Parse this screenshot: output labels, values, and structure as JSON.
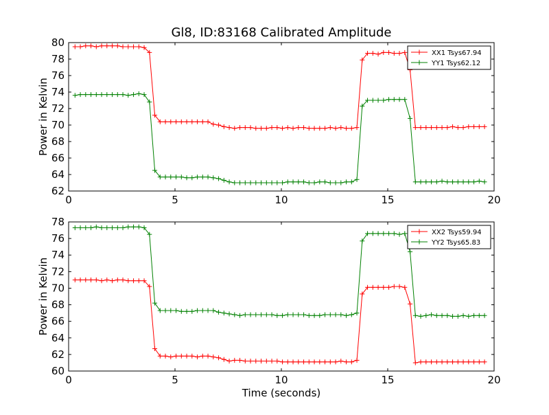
{
  "chart_title": "Gl8, ID:83168 Calibrated Amplitude",
  "colors": {
    "xx": "#ff0000",
    "yy": "#008000"
  },
  "chart_data": [
    {
      "type": "line",
      "title": "Gl8, ID:83168 Calibrated Amplitude",
      "xlabel": "",
      "ylabel": "Power in Kelvin",
      "xlim": [
        0,
        20
      ],
      "ylim": [
        62,
        80
      ],
      "xticks": [
        0,
        5,
        10,
        15,
        20
      ],
      "yticks": [
        62,
        64,
        66,
        68,
        70,
        72,
        74,
        76,
        78,
        80
      ],
      "grid": false,
      "legend_position": "top-right",
      "x": [
        0.3,
        0.55,
        0.8,
        1.05,
        1.3,
        1.55,
        1.8,
        2.05,
        2.3,
        2.55,
        2.8,
        3.05,
        3.3,
        3.55,
        3.8,
        4.05,
        4.3,
        4.55,
        4.8,
        5.05,
        5.3,
        5.55,
        5.8,
        6.05,
        6.3,
        6.55,
        6.8,
        7.05,
        7.3,
        7.55,
        7.8,
        8.05,
        8.3,
        8.55,
        8.8,
        9.05,
        9.3,
        9.55,
        9.8,
        10.05,
        10.3,
        10.55,
        10.8,
        11.05,
        11.3,
        11.55,
        11.8,
        12.05,
        12.3,
        12.55,
        12.8,
        13.05,
        13.3,
        13.55,
        13.8,
        14.05,
        14.3,
        14.55,
        14.8,
        15.05,
        15.3,
        15.55,
        15.8,
        16.05,
        16.3,
        16.55,
        16.8,
        17.05,
        17.3,
        17.55,
        17.8,
        18.05,
        18.3,
        18.55,
        18.8,
        19.05,
        19.3,
        19.55
      ],
      "series": [
        {
          "name": "XX1 Tsys67.94",
          "color": "#ff0000",
          "values": [
            79.5,
            79.5,
            79.6,
            79.6,
            79.5,
            79.6,
            79.6,
            79.6,
            79.6,
            79.5,
            79.5,
            79.5,
            79.5,
            79.4,
            78.8,
            71.2,
            70.4,
            70.4,
            70.4,
            70.4,
            70.4,
            70.4,
            70.4,
            70.4,
            70.4,
            70.4,
            70.1,
            70.0,
            69.8,
            69.7,
            69.6,
            69.7,
            69.7,
            69.7,
            69.6,
            69.6,
            69.6,
            69.7,
            69.7,
            69.6,
            69.7,
            69.6,
            69.7,
            69.7,
            69.6,
            69.6,
            69.6,
            69.6,
            69.7,
            69.6,
            69.7,
            69.6,
            69.6,
            69.7,
            77.9,
            78.7,
            78.7,
            78.6,
            78.8,
            78.8,
            78.7,
            78.7,
            78.8,
            76.7,
            69.7,
            69.7,
            69.7,
            69.7,
            69.7,
            69.7,
            69.7,
            69.8,
            69.7,
            69.7,
            69.8,
            69.8,
            69.8,
            69.8
          ]
        },
        {
          "name": "YY1 Tsys62.12",
          "color": "#008000",
          "values": [
            73.6,
            73.7,
            73.7,
            73.7,
            73.7,
            73.7,
            73.7,
            73.7,
            73.7,
            73.7,
            73.6,
            73.7,
            73.8,
            73.7,
            72.8,
            64.5,
            63.7,
            63.7,
            63.7,
            63.7,
            63.7,
            63.6,
            63.6,
            63.7,
            63.7,
            63.7,
            63.6,
            63.5,
            63.3,
            63.1,
            63.0,
            63.0,
            63.0,
            63.0,
            63.0,
            63.0,
            63.0,
            63.0,
            63.0,
            63.0,
            63.1,
            63.1,
            63.1,
            63.1,
            63.0,
            63.0,
            63.1,
            63.1,
            63.0,
            63.0,
            63.0,
            63.1,
            63.1,
            63.4,
            72.3,
            73.0,
            73.0,
            73.0,
            73.0,
            73.1,
            73.1,
            73.1,
            73.1,
            70.8,
            63.1,
            63.1,
            63.1,
            63.1,
            63.1,
            63.2,
            63.1,
            63.1,
            63.1,
            63.1,
            63.1,
            63.1,
            63.2,
            63.1
          ]
        }
      ]
    },
    {
      "type": "line",
      "title": "",
      "xlabel": "Time (seconds)",
      "ylabel": "Power in Kelvin",
      "xlim": [
        0,
        20
      ],
      "ylim": [
        60,
        78
      ],
      "xticks": [
        0,
        5,
        10,
        15,
        20
      ],
      "yticks": [
        60,
        62,
        64,
        66,
        68,
        70,
        72,
        74,
        76,
        78
      ],
      "grid": false,
      "legend_position": "top-right",
      "x": [
        0.3,
        0.55,
        0.8,
        1.05,
        1.3,
        1.55,
        1.8,
        2.05,
        2.3,
        2.55,
        2.8,
        3.05,
        3.3,
        3.55,
        3.8,
        4.05,
        4.3,
        4.55,
        4.8,
        5.05,
        5.3,
        5.55,
        5.8,
        6.05,
        6.3,
        6.55,
        6.8,
        7.05,
        7.3,
        7.55,
        7.8,
        8.05,
        8.3,
        8.55,
        8.8,
        9.05,
        9.3,
        9.55,
        9.8,
        10.05,
        10.3,
        10.55,
        10.8,
        11.05,
        11.3,
        11.55,
        11.8,
        12.05,
        12.3,
        12.55,
        12.8,
        13.05,
        13.3,
        13.55,
        13.8,
        14.05,
        14.3,
        14.55,
        14.8,
        15.05,
        15.3,
        15.55,
        15.8,
        16.05,
        16.3,
        16.55,
        16.8,
        17.05,
        17.3,
        17.55,
        17.8,
        18.05,
        18.3,
        18.55,
        18.8,
        19.05,
        19.3,
        19.55
      ],
      "series": [
        {
          "name": "XX2 Tsys59.94",
          "color": "#ff0000",
          "values": [
            71.0,
            71.0,
            71.0,
            71.0,
            71.0,
            70.9,
            71.0,
            70.9,
            71.0,
            71.0,
            70.9,
            70.9,
            70.9,
            70.9,
            70.2,
            62.7,
            61.8,
            61.8,
            61.7,
            61.8,
            61.8,
            61.8,
            61.8,
            61.7,
            61.8,
            61.8,
            61.7,
            61.6,
            61.4,
            61.2,
            61.3,
            61.3,
            61.2,
            61.2,
            61.2,
            61.2,
            61.2,
            61.2,
            61.2,
            61.1,
            61.1,
            61.1,
            61.1,
            61.1,
            61.1,
            61.1,
            61.1,
            61.1,
            61.1,
            61.1,
            61.2,
            61.1,
            61.1,
            61.3,
            69.3,
            70.1,
            70.1,
            70.1,
            70.1,
            70.1,
            70.2,
            70.2,
            70.1,
            68.1,
            61.0,
            61.1,
            61.1,
            61.1,
            61.1,
            61.1,
            61.1,
            61.1,
            61.1,
            61.1,
            61.1,
            61.1,
            61.1,
            61.1
          ]
        },
        {
          "name": "YY2 Tsys65.83",
          "color": "#008000",
          "values": [
            77.3,
            77.3,
            77.3,
            77.3,
            77.4,
            77.3,
            77.3,
            77.3,
            77.3,
            77.3,
            77.4,
            77.4,
            77.4,
            77.3,
            76.5,
            68.2,
            67.3,
            67.3,
            67.3,
            67.3,
            67.2,
            67.2,
            67.2,
            67.3,
            67.3,
            67.3,
            67.3,
            67.1,
            67.0,
            66.9,
            66.8,
            66.7,
            66.8,
            66.8,
            66.8,
            66.8,
            66.8,
            66.8,
            66.7,
            66.7,
            66.8,
            66.8,
            66.8,
            66.8,
            66.7,
            66.7,
            66.7,
            66.8,
            66.8,
            66.8,
            66.8,
            66.7,
            66.8,
            67.0,
            75.7,
            76.6,
            76.6,
            76.6,
            76.6,
            76.6,
            76.6,
            76.5,
            76.6,
            74.4,
            66.7,
            66.6,
            66.7,
            66.8,
            66.7,
            66.7,
            66.7,
            66.6,
            66.6,
            66.7,
            66.6,
            66.7,
            66.7,
            66.7
          ]
        }
      ]
    }
  ]
}
